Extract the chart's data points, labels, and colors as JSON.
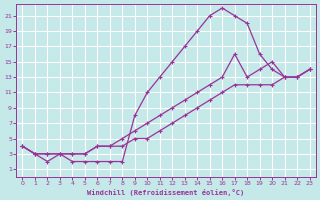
{
  "xlabel": "Windchill (Refroidissement éolien,°C)",
  "background_color": "#c5e8e8",
  "grid_color": "#b0d8d8",
  "line_color": "#993399",
  "x_ticks": [
    0,
    1,
    2,
    3,
    4,
    5,
    6,
    7,
    8,
    9,
    10,
    11,
    12,
    13,
    14,
    15,
    16,
    17,
    18,
    19,
    20,
    21,
    22,
    23
  ],
  "y_ticks": [
    1,
    3,
    5,
    7,
    9,
    11,
    13,
    15,
    17,
    19,
    21
  ],
  "xlim": [
    -0.5,
    23.5
  ],
  "ylim": [
    0.0,
    22.5
  ],
  "line1_x": [
    0,
    1,
    2,
    3,
    4,
    5,
    6,
    7,
    8,
    9,
    10,
    11,
    12,
    13,
    14,
    15,
    16,
    17,
    18,
    19,
    20,
    21,
    22,
    23
  ],
  "line1_y": [
    4,
    3,
    2,
    3,
    2,
    2,
    2,
    2,
    2,
    8,
    11,
    13,
    15,
    17,
    19,
    21,
    22,
    21,
    20,
    16,
    14,
    13,
    13,
    14
  ],
  "line2_x": [
    0,
    1,
    2,
    3,
    4,
    5,
    6,
    7,
    8,
    9,
    10,
    11,
    12,
    13,
    14,
    15,
    16,
    17,
    18,
    19,
    20,
    21,
    22,
    23
  ],
  "line2_y": [
    4,
    3,
    3,
    3,
    3,
    3,
    4,
    4,
    5,
    6,
    7,
    8,
    9,
    10,
    11,
    12,
    13,
    16,
    13,
    14,
    15,
    13,
    13,
    14
  ],
  "line3_x": [
    0,
    1,
    2,
    3,
    4,
    5,
    6,
    7,
    8,
    9,
    10,
    11,
    12,
    13,
    14,
    15,
    16,
    17,
    18,
    19,
    20,
    21,
    22,
    23
  ],
  "line3_y": [
    4,
    3,
    3,
    3,
    3,
    3,
    4,
    4,
    4,
    5,
    5,
    6,
    7,
    8,
    9,
    10,
    11,
    12,
    12,
    12,
    12,
    13,
    13,
    14
  ]
}
